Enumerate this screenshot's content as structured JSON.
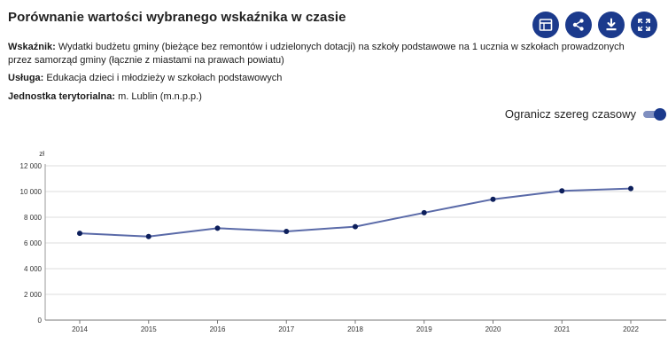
{
  "header": {
    "title": "Porównanie wartości wybranego wskaźnika w czasie",
    "toolbar": [
      {
        "name": "table-view-button",
        "icon": "table-icon"
      },
      {
        "name": "share-button",
        "icon": "share-icon"
      },
      {
        "name": "download-button",
        "icon": "download-icon"
      },
      {
        "name": "fullscreen-button",
        "icon": "fullscreen-icon"
      }
    ]
  },
  "meta": {
    "indicator_label": "Wskaźnik:",
    "indicator_value": "Wydatki budżetu gminy (bieżące bez remontów i udzielonych dotacji) na szkoły podstawowe na 1 ucznia w szkołach prowadzonych przez samorząd gminy (łącznie z miastami na prawach powiatu)",
    "service_label": "Usługa:",
    "service_value": "Edukacja dzieci i młodzieży w szkołach podstawowych",
    "unit_label": "Jednostka terytorialna:",
    "unit_value": "m. Lublin (m.n.p.p.)"
  },
  "toggle": {
    "label": "Ogranicz szereg czasowy",
    "on": true
  },
  "colors": {
    "accent": "#1b3a8c",
    "line": "#5a6aa8",
    "marker": "#0d1f5c",
    "grid": "#dcdcdc"
  },
  "chart_data": {
    "type": "line",
    "ylabel": "zł",
    "ylim": [
      0,
      12000
    ],
    "yticks": [
      0,
      2000,
      4000,
      6000,
      8000,
      10000,
      12000
    ],
    "ytick_labels": [
      "0",
      "2 000",
      "4 000",
      "6 000",
      "8 000",
      "10 000",
      "12 000"
    ],
    "x": [
      "2014",
      "2015",
      "2016",
      "2017",
      "2018",
      "2019",
      "2020",
      "2021",
      "2022"
    ],
    "series": [
      {
        "values": [
          6750,
          6500,
          7150,
          6900,
          7270,
          8350,
          9400,
          10050,
          10230
        ]
      }
    ],
    "grid": true
  }
}
